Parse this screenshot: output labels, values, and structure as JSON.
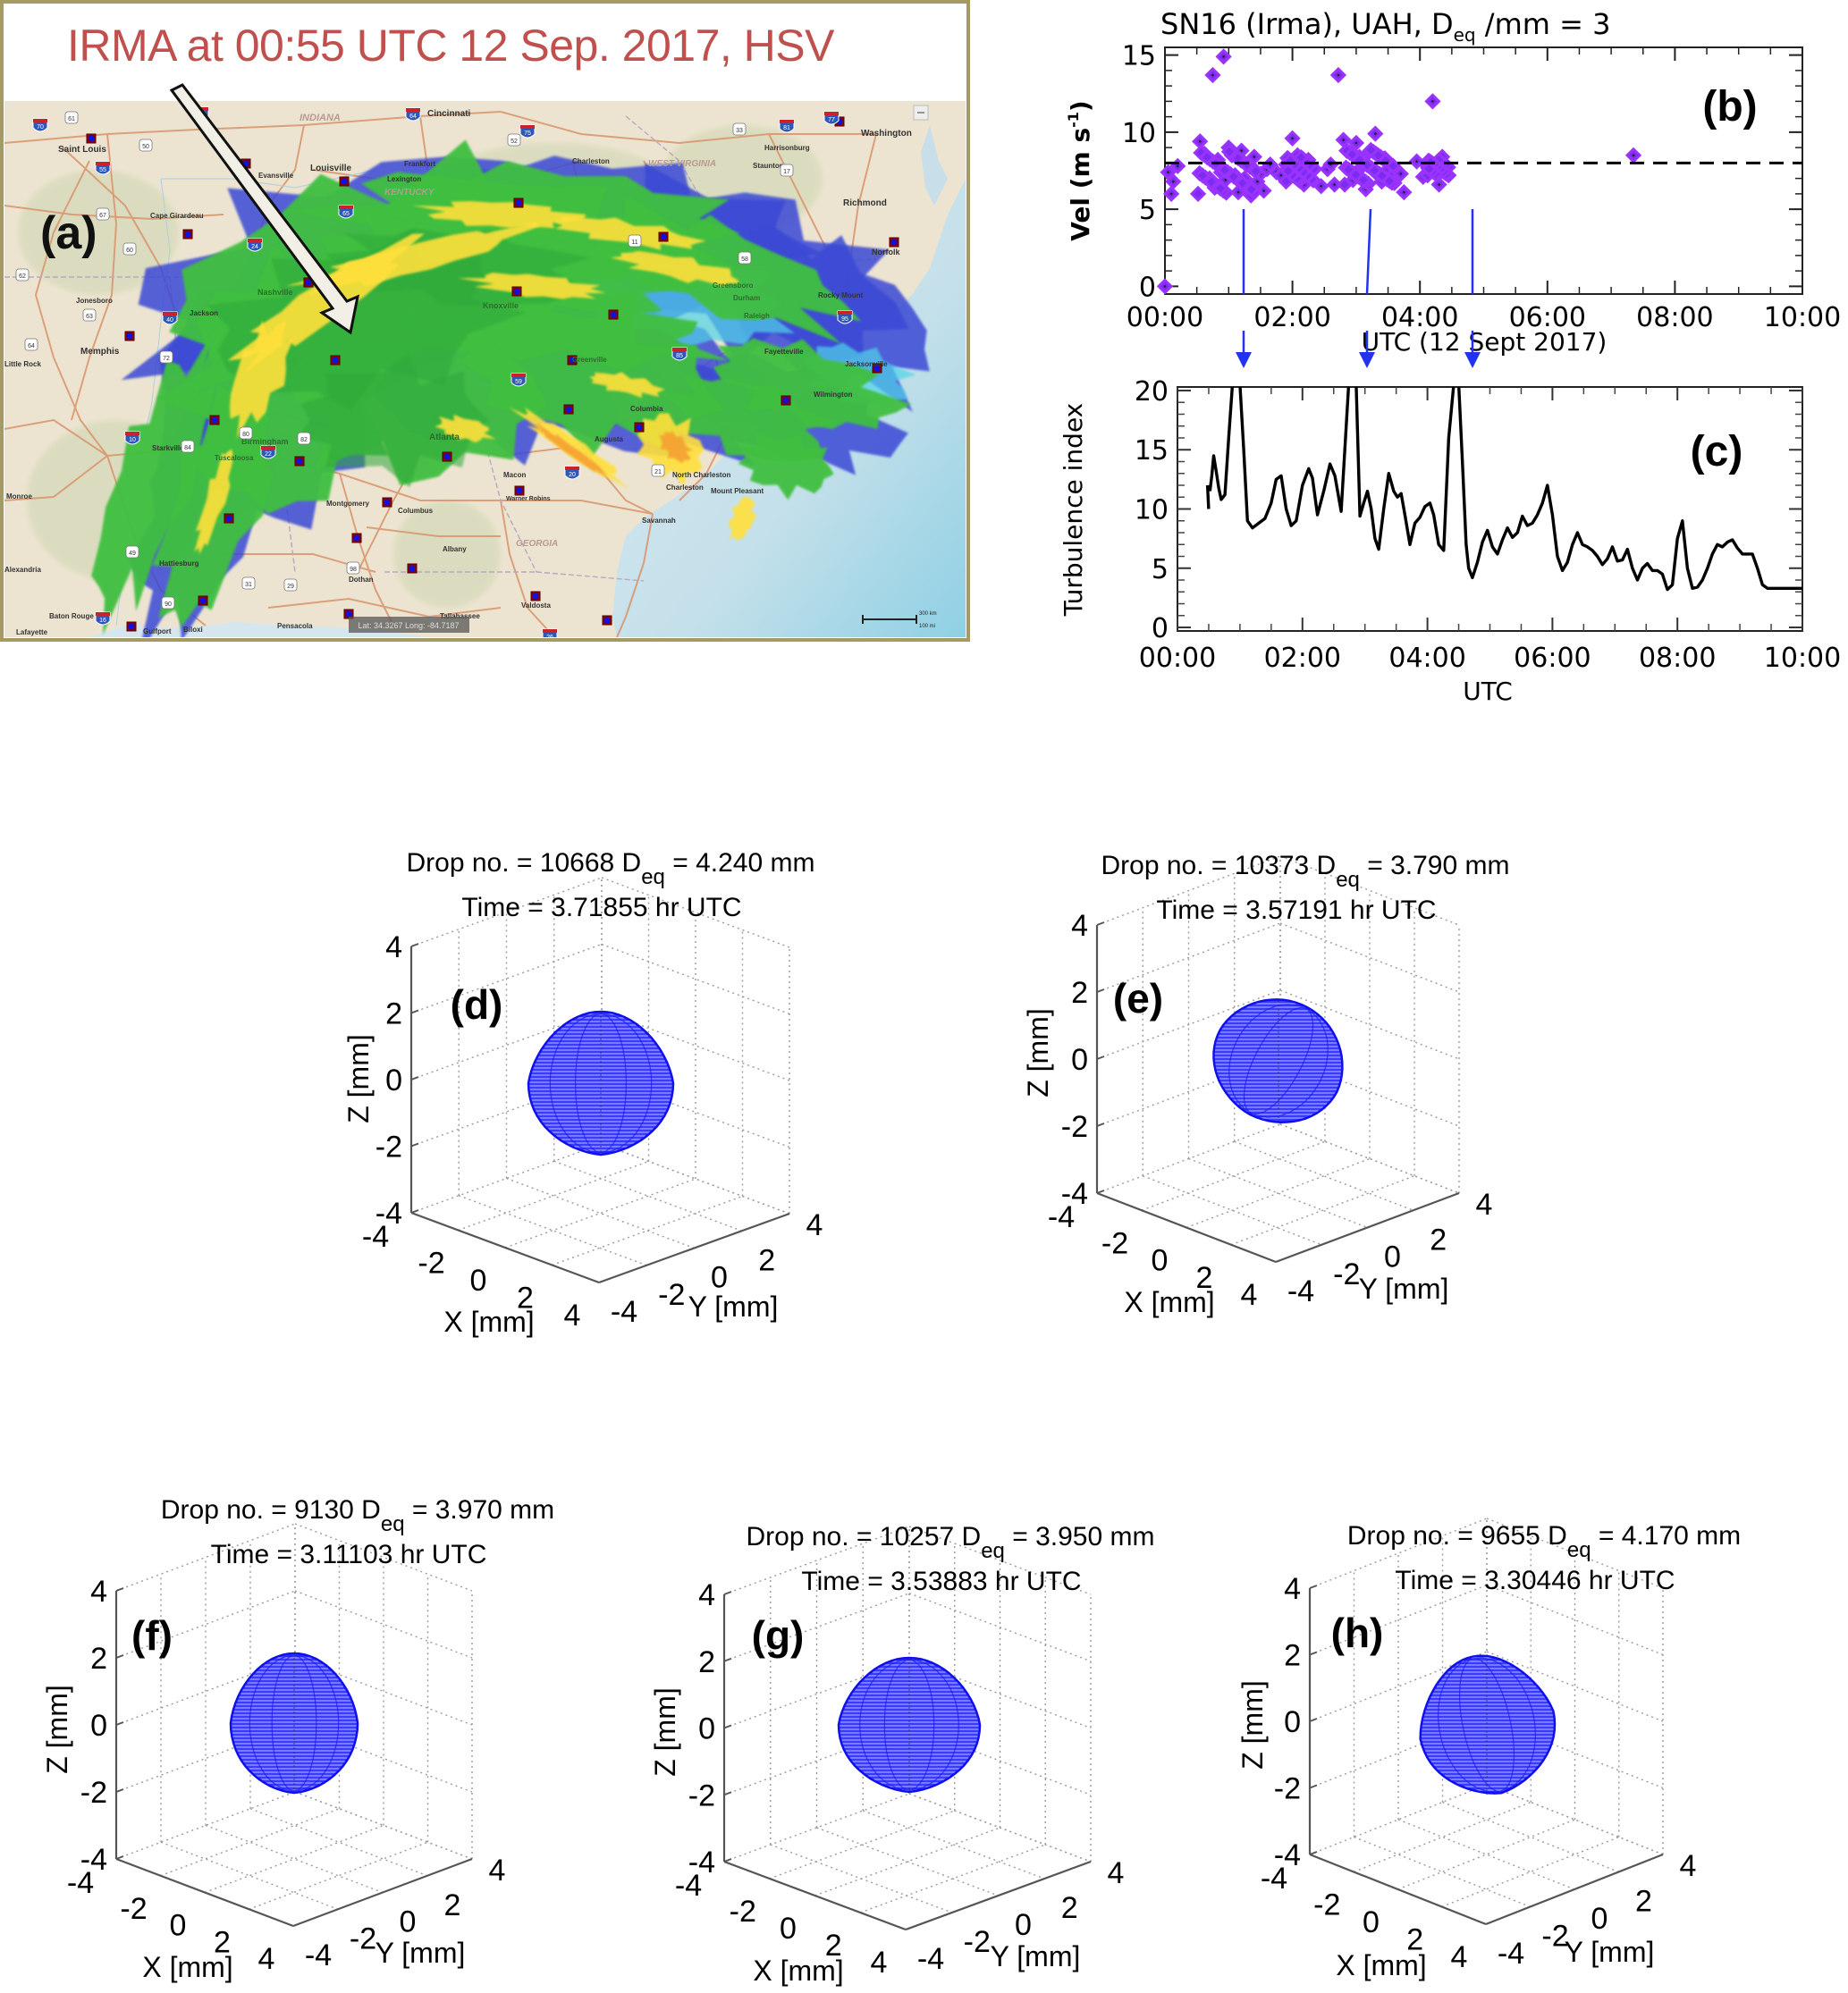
{
  "panel_a": {
    "label": "(a)",
    "title": "IRMA at 00:55 UTC  12 Sep. 2017, HSV",
    "map_labels": {
      "states": [
        "INDIANA",
        "WEST VIRGINIA",
        "KENTUCKY",
        "GEORGIA"
      ],
      "cities": [
        "Saint Louis",
        "Cincinnati",
        "Louisville",
        "Evansville",
        "Frankfort",
        "Lexington",
        "Cape Girardeau",
        "Charleston",
        "Washington",
        "Harrisonburg",
        "Staunton",
        "Richmond",
        "Norfolk",
        "Rocky Mount",
        "Fayetteville",
        "Jacksonville",
        "Wilmington",
        "Memphis",
        "Jonesboro",
        "Jackson",
        "Nashville",
        "Knoxville",
        "Birmingham",
        "Tuscaloosa",
        "Atlanta",
        "Montgomery",
        "Columbus",
        "Macon",
        "Warner Robins",
        "Augusta",
        "Columbia",
        "Greensboro",
        "Durham",
        "Raleigh",
        "Greenville",
        "North Charleston",
        "Charleston",
        "Mount Pleasant",
        "Savannah",
        "Valdosta",
        "Tallahassee",
        "Albany",
        "Dothan",
        "Pensacola",
        "Gulfport",
        "Biloxi",
        "Hattiesburg",
        "Monroe",
        "Baton Rouge",
        "Lafayette",
        "Alexandria",
        "Starkville",
        "Little Rock"
      ],
      "interstates": [
        "70",
        "55",
        "57",
        "64",
        "24",
        "40",
        "65",
        "75",
        "77",
        "81",
        "95",
        "85",
        "20",
        "10",
        "16",
        "26",
        "59",
        "22"
      ],
      "highways": [
        "61",
        "50",
        "67",
        "60",
        "62",
        "63",
        "64",
        "72",
        "52",
        "33",
        "17",
        "11",
        "58",
        "21",
        "82",
        "80",
        "84",
        "49",
        "31",
        "29",
        "98",
        "90"
      ],
      "lat_long_readout": "Lat: 34.3267  Long: -84.7187",
      "scale_bar": [
        "300 km",
        "100 mi"
      ]
    },
    "colors": {
      "title": "#c0504d",
      "frame": "#a59a62",
      "rain_light": "#3fbf3f",
      "rain_medium": "#ffe03a",
      "rain_heavy": "#f5a033",
      "rain_drizzle": "#3b49d6",
      "land": "#ece3cf",
      "water": "#c8dfe9",
      "road": "#d9936c"
    }
  },
  "chart_data": [
    {
      "id": "b",
      "type": "scatter",
      "label": "(b)",
      "title": "SN16 (Irma), UAH, D",
      "title_sub": "eq",
      "title_tail": " /mm = 3",
      "xlabel": "UTC (12 Sept 2017)",
      "ylabel": "Vel (m s",
      "ylabel_sup": "-1",
      "ylabel_tail": ")",
      "xlim": [
        0,
        10
      ],
      "ylim": [
        -0.5,
        15.5
      ],
      "xticks": [
        0,
        2,
        4,
        6,
        8,
        10
      ],
      "xtick_labels": [
        "00:00",
        "02:00",
        "04:00",
        "06:00",
        "08:00",
        "10:00"
      ],
      "yticks": [
        0,
        5,
        10,
        15
      ],
      "ytick_labels": [
        "0",
        "5",
        "10",
        "15"
      ],
      "reference_line": {
        "y": 8.0,
        "style": "dashed"
      },
      "marker": "diamond",
      "color": "#8a2be2",
      "markers_at_hours": [
        0.82,
        2.7,
        4.35
      ],
      "points": [
        [
          0.0,
          0.0
        ],
        [
          0.05,
          7.4
        ],
        [
          0.1,
          6.0
        ],
        [
          0.13,
          6.8
        ],
        [
          0.2,
          7.8
        ],
        [
          0.55,
          9.4
        ],
        [
          0.62,
          8.6
        ],
        [
          0.7,
          7.0
        ],
        [
          0.75,
          13.7
        ],
        [
          0.78,
          6.4
        ],
        [
          0.83,
          8.2
        ],
        [
          0.88,
          7.4
        ],
        [
          0.92,
          14.9
        ],
        [
          0.95,
          6.9
        ],
        [
          1.0,
          9.0
        ],
        [
          1.05,
          8.5
        ],
        [
          1.1,
          7.2
        ],
        [
          1.15,
          6.1
        ],
        [
          1.2,
          8.8
        ],
        [
          1.25,
          7.0
        ],
        [
          1.3,
          6.4
        ],
        [
          1.35,
          5.9
        ],
        [
          1.4,
          8.4
        ],
        [
          1.45,
          6.8
        ],
        [
          1.5,
          7.3
        ],
        [
          1.55,
          6.2
        ],
        [
          1.6,
          7.6
        ],
        [
          1.65,
          7.9
        ],
        [
          1.75,
          7.4
        ],
        [
          1.82,
          7.2
        ],
        [
          1.9,
          7.9
        ],
        [
          1.95,
          7.0
        ],
        [
          2.0,
          9.6
        ],
        [
          2.03,
          8.3
        ],
        [
          2.08,
          8.5
        ],
        [
          2.12,
          7.4
        ],
        [
          2.18,
          6.6
        ],
        [
          2.25,
          8.2
        ],
        [
          2.32,
          7.5
        ],
        [
          2.45,
          6.5
        ],
        [
          2.55,
          7.6
        ],
        [
          2.6,
          7.9
        ],
        [
          2.66,
          6.6
        ],
        [
          2.72,
          13.7
        ],
        [
          2.8,
          9.5
        ],
        [
          2.85,
          8.8
        ],
        [
          2.9,
          7.5
        ],
        [
          2.95,
          6.9
        ],
        [
          3.0,
          9.3
        ],
        [
          3.05,
          8.4
        ],
        [
          3.1,
          7.8
        ],
        [
          3.15,
          6.3
        ],
        [
          3.2,
          8.7
        ],
        [
          3.25,
          7.6
        ],
        [
          3.3,
          9.9
        ],
        [
          3.35,
          7.2
        ],
        [
          3.4,
          6.8
        ],
        [
          3.45,
          8.3
        ],
        [
          3.5,
          7.6
        ],
        [
          3.55,
          7.1
        ],
        [
          3.6,
          6.7
        ],
        [
          3.7,
          7.3
        ],
        [
          3.75,
          6.1
        ],
        [
          3.95,
          8.1
        ],
        [
          4.05,
          7.1
        ],
        [
          4.12,
          7.8
        ],
        [
          4.2,
          12.0
        ],
        [
          4.25,
          7.4
        ],
        [
          4.3,
          6.6
        ],
        [
          4.35,
          8.4
        ],
        [
          4.4,
          7.7
        ],
        [
          4.45,
          7.2
        ],
        [
          7.35,
          8.5
        ]
      ]
    },
    {
      "id": "c",
      "type": "line",
      "label": "(c)",
      "title": "",
      "xlabel": "UTC",
      "ylabel": "Turbulence index",
      "xlim": [
        0,
        10
      ],
      "ylim": [
        -0.3,
        20.3
      ],
      "xticks": [
        0,
        2,
        4,
        6,
        8,
        10
      ],
      "xtick_labels": [
        "00:00",
        "02:00",
        "04:00",
        "06:00",
        "08:00",
        "10:00"
      ],
      "yticks": [
        0,
        5,
        10,
        15,
        20
      ],
      "ytick_labels": [
        "0",
        "5",
        "10",
        "15",
        "20"
      ],
      "color": "#000000",
      "x": [
        0.48,
        0.5,
        0.52,
        0.55,
        0.58,
        0.62,
        0.66,
        0.7,
        0.76,
        0.82,
        0.88,
        0.94,
        1.0,
        1.06,
        1.12,
        1.2,
        1.3,
        1.4,
        1.5,
        1.58,
        1.66,
        1.74,
        1.82,
        1.9,
        2.0,
        2.1,
        2.16,
        2.24,
        2.34,
        2.44,
        2.52,
        2.62,
        2.74,
        2.8,
        2.86,
        2.92,
        2.98,
        3.04,
        3.1,
        3.16,
        3.22,
        3.3,
        3.38,
        3.46,
        3.52,
        3.58,
        3.64,
        3.72,
        3.8,
        3.88,
        3.96,
        4.04,
        4.1,
        4.18,
        4.26,
        4.34,
        4.42,
        4.5,
        4.56,
        4.62,
        4.66,
        4.72,
        4.8,
        4.88,
        4.96,
        5.04,
        5.12,
        5.2,
        5.28,
        5.36,
        5.44,
        5.52,
        5.6,
        5.68,
        5.76,
        5.84,
        5.92,
        6.0,
        6.08,
        6.16,
        6.24,
        6.32,
        6.4,
        6.48,
        6.56,
        6.64,
        6.72,
        6.8,
        6.88,
        6.96,
        7.04,
        7.12,
        7.2,
        7.28,
        7.36,
        7.44,
        7.52,
        7.6,
        7.68,
        7.76,
        7.84,
        7.92,
        8.0,
        8.08,
        8.16,
        8.24,
        8.32,
        8.4,
        8.48,
        8.56,
        8.64,
        8.72,
        8.8,
        8.88,
        8.96,
        9.04,
        9.12,
        9.2,
        9.28,
        9.36,
        9.44,
        9.52,
        9.6,
        9.68,
        9.76,
        9.84,
        9.92,
        10.0
      ],
      "y": [
        12.0,
        10.0,
        11.5,
        12.8,
        14.5,
        13.2,
        11.8,
        10.8,
        11.2,
        16.0,
        20.5,
        20.5,
        20.5,
        15.0,
        9.0,
        8.4,
        8.8,
        9.2,
        10.5,
        12.5,
        12.8,
        10.0,
        8.6,
        9.0,
        12.0,
        13.4,
        12.6,
        9.5,
        11.5,
        13.8,
        12.8,
        9.8,
        20.5,
        20.5,
        20.5,
        9.4,
        10.5,
        11.5,
        10.0,
        7.5,
        6.6,
        10.0,
        13.0,
        11.5,
        11.0,
        11.3,
        9.5,
        7.0,
        8.8,
        9.3,
        10.2,
        10.5,
        9.5,
        7.0,
        6.5,
        16.0,
        20.5,
        20.5,
        14.0,
        7.0,
        5.0,
        4.2,
        5.5,
        7.2,
        8.2,
        6.8,
        6.2,
        7.4,
        8.4,
        7.6,
        8.0,
        9.4,
        8.6,
        8.8,
        9.5,
        10.5,
        12.0,
        9.5,
        6.0,
        4.8,
        5.5,
        7.0,
        8.0,
        7.0,
        6.8,
        6.5,
        6.0,
        5.3,
        5.8,
        6.8,
        5.6,
        5.7,
        6.6,
        5.0,
        4.0,
        5.0,
        5.4,
        4.8,
        4.8,
        4.5,
        3.2,
        3.6,
        7.5,
        9.0,
        5.0,
        3.3,
        3.4,
        4.0,
        5.0,
        6.2,
        7.0,
        6.8,
        7.2,
        7.4,
        6.7,
        6.2,
        6.2,
        6.2,
        5.0,
        3.6,
        3.3,
        3.3,
        3.3,
        3.3,
        3.3,
        3.3,
        3.3,
        3.3
      ]
    }
  ],
  "drop_panels": [
    {
      "id": "d",
      "label": "(d)",
      "drop_no": "10668",
      "deq": "4.240",
      "time": "3.71855"
    },
    {
      "id": "e",
      "label": "(e)",
      "drop_no": "10373",
      "deq": "3.790",
      "time": "3.57191"
    },
    {
      "id": "f",
      "label": "(f)",
      "drop_no": "9130",
      "deq": "3.970",
      "time": "3.11103"
    },
    {
      "id": "g",
      "label": "(g)",
      "drop_no": "10257",
      "deq": "3.950",
      "time": "3.53883"
    },
    {
      "id": "h",
      "label": "(h)",
      "drop_no": "9655",
      "deq": "4.170",
      "time": "3.30446"
    }
  ],
  "drop_text": {
    "line1_prefix": "Drop no. = ",
    "line1_mid": " D",
    "sub": "eq",
    "line1_eq": " =  ",
    "line1_unit": " mm",
    "line2_prefix": "Time =  ",
    "line2_suffix": " hr UTC",
    "xlabel": "X [mm]",
    "ylabel": "Y [mm]",
    "zlabel": "Z [mm]",
    "ticks": [
      "-4",
      "-2",
      "0",
      "2",
      "4"
    ],
    "mesh_color": "#1f1fff"
  }
}
